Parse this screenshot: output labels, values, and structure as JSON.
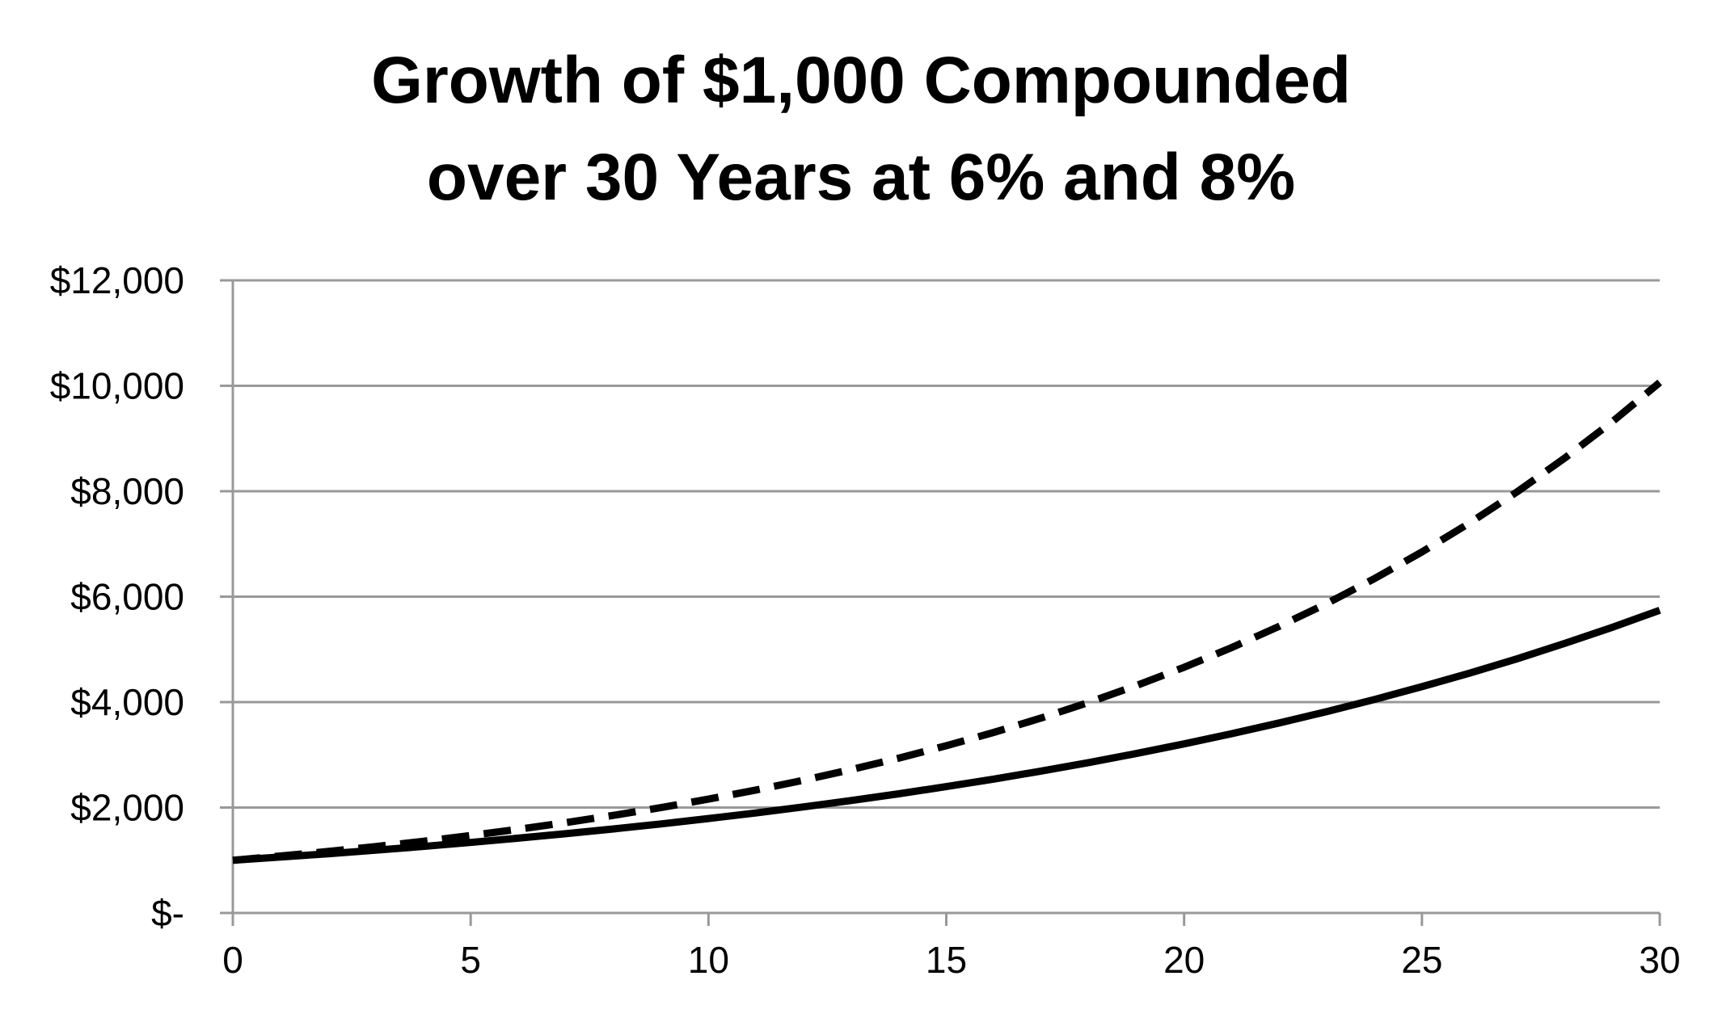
{
  "title_lines": [
    "Growth of $1,000 Compounded",
    "over 30 Years at 6% and 8%"
  ],
  "chart_data": {
    "type": "line",
    "title": "Growth of $1,000 Compounded over 30 Years at 6% and 8%",
    "xlabel": "",
    "ylabel": "",
    "xlim": [
      0,
      30
    ],
    "ylim": [
      0,
      12000
    ],
    "x_ticks": [
      0,
      5,
      10,
      15,
      20,
      25,
      30
    ],
    "x_tick_labels": [
      "0",
      "5",
      "10",
      "15",
      "20",
      "25",
      "30"
    ],
    "y_ticks": [
      0,
      2000,
      4000,
      6000,
      8000,
      10000,
      12000
    ],
    "y_tick_labels": [
      "$-",
      "$2,000",
      "$4,000",
      "$6,000",
      "$8,000",
      "$10,000",
      "$12,000"
    ],
    "grid": "horizontal",
    "legend": "none",
    "x": [
      0,
      1,
      2,
      3,
      4,
      5,
      6,
      7,
      8,
      9,
      10,
      11,
      12,
      13,
      14,
      15,
      16,
      17,
      18,
      19,
      20,
      21,
      22,
      23,
      24,
      25,
      26,
      27,
      28,
      29,
      30
    ],
    "series": [
      {
        "style": "dashed",
        "color": "#000000",
        "values": [
          1000,
          1080,
          1166,
          1260,
          1360,
          1469,
          1587,
          1714,
          1851,
          1999,
          2159,
          2332,
          2518,
          2720,
          2937,
          3172,
          3426,
          3700,
          3996,
          4316,
          4661,
          5034,
          5437,
          5871,
          6341,
          6848,
          7396,
          7988,
          8627,
          9317,
          10063
        ]
      },
      {
        "style": "solid",
        "color": "#000000",
        "values": [
          1000,
          1060,
          1124,
          1191,
          1262,
          1338,
          1419,
          1504,
          1594,
          1689,
          1791,
          1898,
          2012,
          2133,
          2261,
          2397,
          2540,
          2693,
          2854,
          3026,
          3207,
          3400,
          3604,
          3820,
          4049,
          4292,
          4549,
          4822,
          5112,
          5418,
          5743
        ]
      }
    ],
    "colors": {
      "gridline": "#999999",
      "axis": "#999999",
      "line": "#000000"
    }
  }
}
